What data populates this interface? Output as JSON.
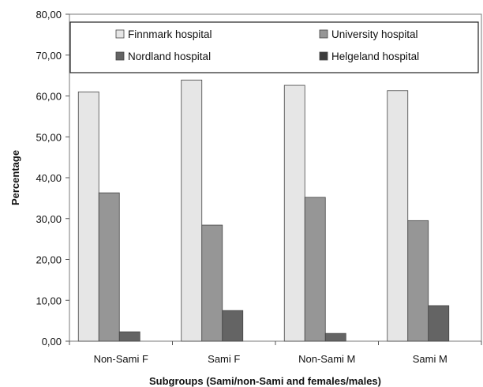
{
  "chart_data": {
    "type": "bar",
    "categories": [
      "Non-Sami F",
      "Sami F",
      "Non-Sami M",
      "Sami M"
    ],
    "series": [
      {
        "name": "Finnmark hospital",
        "color": "#e6e6e6",
        "values": [
          61.0,
          63.9,
          62.6,
          61.3
        ]
      },
      {
        "name": "University hospital",
        "color": "#969696",
        "values": [
          36.3,
          28.4,
          35.2,
          29.5
        ]
      },
      {
        "name": "Nordland hospital",
        "color": "#646464",
        "values": [
          2.3,
          7.5,
          1.9,
          8.7
        ]
      },
      {
        "name": "Helgeland hospital",
        "color": "#3c3c3c",
        "values": [
          0,
          0,
          0,
          0
        ]
      }
    ],
    "ylim": [
      0,
      80
    ],
    "yticks": [
      "0,00",
      "10,00",
      "20,00",
      "30,00",
      "40,00",
      "50,00",
      "60,00",
      "70,00",
      "80,00"
    ],
    "xlabel": "Subgroups (Sami/non-Sami and females/males)",
    "ylabel": "Percentage",
    "legend_position": "top",
    "grid": false
  }
}
